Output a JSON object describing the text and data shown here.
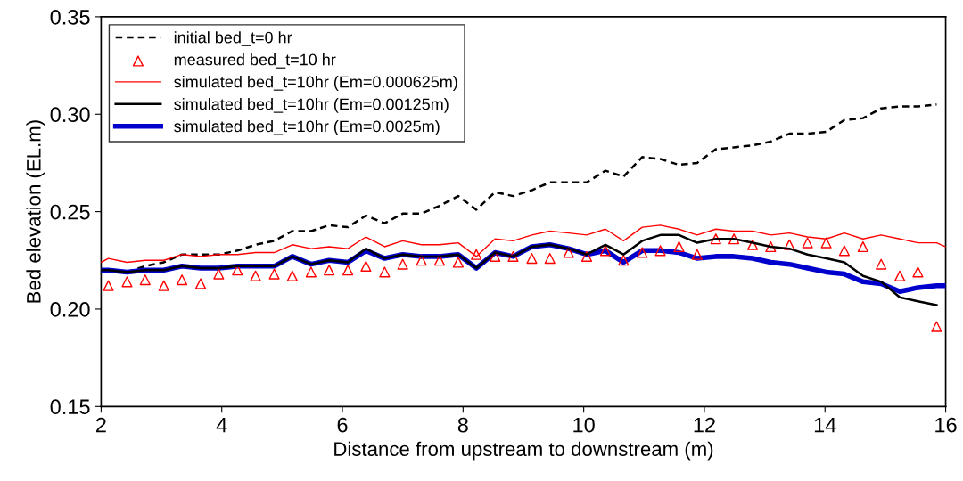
{
  "chart_data": {
    "type": "line",
    "xlabel": "Distance from upstream to downstream (m)",
    "ylabel": "Bed elevation (EL.m)",
    "xlim": [
      2,
      16
    ],
    "xticks": [
      2,
      4,
      6,
      8,
      10,
      12,
      14,
      16
    ],
    "ylim": [
      0.15,
      0.35
    ],
    "yticks": [
      {
        "value": 0.15,
        "label": "0.15"
      },
      {
        "value": 0.2,
        "label": "0.20"
      },
      {
        "value": 0.25,
        "label": "0.25"
      },
      {
        "value": 0.3,
        "label": "0.30"
      },
      {
        "value": 0.35,
        "label": "0.35"
      }
    ],
    "grid": false,
    "legend": "top left",
    "x": [
      2.12,
      2.43,
      2.73,
      3.04,
      3.34,
      3.65,
      3.95,
      4.26,
      4.56,
      4.87,
      5.17,
      5.48,
      5.78,
      6.09,
      6.39,
      6.7,
      7.0,
      7.31,
      7.61,
      7.92,
      8.22,
      8.53,
      8.83,
      9.14,
      9.44,
      9.75,
      10.05,
      10.36,
      10.66,
      10.97,
      11.27,
      11.58,
      11.88,
      12.19,
      12.49,
      12.8,
      13.1,
      13.41,
      13.71,
      14.02,
      14.32,
      14.63,
      14.93,
      15.24,
      15.54,
      15.85
    ],
    "series": [
      {
        "name": "initial bed_t=0 hr",
        "color": "#000000",
        "line_style": "dashed",
        "marker": "none",
        "x": [
          2.43,
          2.73,
          3.04,
          3.34,
          3.65,
          3.95,
          4.26,
          4.56,
          4.87,
          5.17,
          5.48,
          5.78,
          6.09,
          6.39,
          6.7,
          7.0,
          7.31,
          7.61,
          7.92,
          8.22,
          8.53,
          8.83,
          9.14,
          9.44,
          9.75,
          10.05,
          10.36,
          10.66,
          10.97,
          11.27,
          11.58,
          11.88,
          12.19,
          12.49,
          12.8,
          13.1,
          13.41,
          13.71,
          14.02,
          14.32,
          14.63,
          14.93,
          15.24,
          15.54,
          15.85
        ],
        "values": [
          0.219,
          0.222,
          0.224,
          0.228,
          0.228,
          0.228,
          0.23,
          0.233,
          0.235,
          0.24,
          0.24,
          0.243,
          0.242,
          0.248,
          0.244,
          0.249,
          0.249,
          0.253,
          0.258,
          0.251,
          0.26,
          0.258,
          0.261,
          0.265,
          0.265,
          0.265,
          0.271,
          0.268,
          0.278,
          0.277,
          0.274,
          0.275,
          0.282,
          0.283,
          0.284,
          0.286,
          0.29,
          0.29,
          0.291,
          0.297,
          0.298,
          0.303,
          0.304,
          0.304,
          0.305
        ]
      },
      {
        "name": "measured bed_t=10 hr",
        "type": "scatter",
        "color": "#ff0000",
        "marker": "triangle",
        "values": [
          0.212,
          0.214,
          0.215,
          0.212,
          0.215,
          0.213,
          0.218,
          0.22,
          0.217,
          0.218,
          0.217,
          0.219,
          0.22,
          0.22,
          0.222,
          0.219,
          0.223,
          0.225,
          0.225,
          0.224,
          0.228,
          0.227,
          0.227,
          0.226,
          0.226,
          0.229,
          0.227,
          0.23,
          0.225,
          0.229,
          0.23,
          0.232,
          0.228,
          0.236,
          0.236,
          0.233,
          0.232,
          0.233,
          0.234,
          0.234,
          0.23,
          0.232,
          0.223,
          0.217,
          0.219,
          0.191
        ]
      },
      {
        "name": "simulated bed_t=10hr (Em=0.000625m)",
        "color": "#ff0000",
        "line_style": "solid",
        "marker": "none",
        "x": [
          2,
          2.12,
          2.43,
          2.73,
          3.04,
          3.34,
          3.65,
          3.95,
          4.26,
          4.56,
          4.87,
          5.17,
          5.48,
          5.78,
          6.09,
          6.39,
          6.7,
          7.0,
          7.31,
          7.61,
          7.92,
          8.22,
          8.53,
          8.83,
          9.14,
          9.44,
          9.75,
          10.05,
          10.36,
          10.66,
          10.97,
          11.27,
          11.58,
          11.88,
          12.19,
          12.49,
          12.8,
          13.1,
          13.41,
          13.71,
          14.02,
          14.32,
          14.63,
          14.93,
          15.24,
          15.54,
          15.85,
          16
        ],
        "values": [
          0.224,
          0.226,
          0.224,
          0.225,
          0.225,
          0.228,
          0.227,
          0.228,
          0.228,
          0.229,
          0.229,
          0.233,
          0.231,
          0.232,
          0.231,
          0.237,
          0.232,
          0.235,
          0.233,
          0.233,
          0.234,
          0.227,
          0.236,
          0.235,
          0.238,
          0.24,
          0.239,
          0.238,
          0.241,
          0.235,
          0.242,
          0.243,
          0.241,
          0.238,
          0.241,
          0.24,
          0.24,
          0.238,
          0.239,
          0.237,
          0.236,
          0.239,
          0.236,
          0.238,
          0.236,
          0.234,
          0.234,
          0.232
        ]
      },
      {
        "name": "simulated bed_t=10hr (Em=0.00125m)",
        "color": "#000000",
        "line_style": "solid",
        "marker": "none",
        "x": [
          2,
          2.12,
          2.43,
          2.73,
          3.04,
          3.34,
          3.65,
          3.95,
          4.26,
          4.56,
          4.87,
          5.17,
          5.48,
          5.78,
          6.09,
          6.39,
          6.7,
          7.0,
          7.31,
          7.61,
          7.92,
          8.22,
          8.53,
          8.83,
          9.14,
          9.44,
          9.75,
          10.05,
          10.36,
          10.66,
          10.97,
          11.27,
          11.58,
          11.88,
          12.19,
          12.49,
          12.8,
          13.1,
          13.41,
          13.71,
          14.02,
          14.32,
          14.63,
          14.93,
          15.24,
          15.54,
          15.85
        ],
        "values": [
          0.22,
          0.22,
          0.219,
          0.22,
          0.22,
          0.222,
          0.221,
          0.221,
          0.222,
          0.222,
          0.222,
          0.227,
          0.223,
          0.225,
          0.224,
          0.231,
          0.226,
          0.228,
          0.227,
          0.227,
          0.228,
          0.221,
          0.229,
          0.227,
          0.232,
          0.233,
          0.231,
          0.228,
          0.233,
          0.228,
          0.235,
          0.238,
          0.238,
          0.234,
          0.236,
          0.236,
          0.234,
          0.232,
          0.231,
          0.228,
          0.226,
          0.224,
          0.217,
          0.214,
          0.206,
          0.204,
          0.202
        ]
      },
      {
        "name": "simulated bed_t=10hr (Em=0.0025m)",
        "color": "#0000cc",
        "line_style": "solid",
        "marker": "none",
        "x": [
          2,
          2.12,
          2.43,
          2.73,
          3.04,
          3.34,
          3.65,
          3.95,
          4.26,
          4.56,
          4.87,
          5.17,
          5.48,
          5.78,
          6.09,
          6.39,
          6.7,
          7.0,
          7.31,
          7.61,
          7.92,
          8.22,
          8.53,
          8.83,
          9.14,
          9.44,
          9.75,
          10.05,
          10.36,
          10.66,
          10.97,
          11.27,
          11.58,
          11.88,
          12.19,
          12.49,
          12.8,
          13.1,
          13.41,
          13.71,
          14.02,
          14.32,
          14.63,
          14.93,
          15.24,
          15.54,
          15.85,
          16
        ],
        "values": [
          0.22,
          0.22,
          0.219,
          0.22,
          0.22,
          0.222,
          0.221,
          0.221,
          0.222,
          0.222,
          0.222,
          0.227,
          0.223,
          0.225,
          0.224,
          0.23,
          0.226,
          0.228,
          0.227,
          0.227,
          0.228,
          0.221,
          0.229,
          0.227,
          0.232,
          0.233,
          0.231,
          0.228,
          0.23,
          0.224,
          0.23,
          0.23,
          0.229,
          0.226,
          0.227,
          0.227,
          0.226,
          0.224,
          0.223,
          0.221,
          0.219,
          0.218,
          0.214,
          0.213,
          0.209,
          0.211,
          0.212,
          0.212
        ]
      }
    ]
  }
}
